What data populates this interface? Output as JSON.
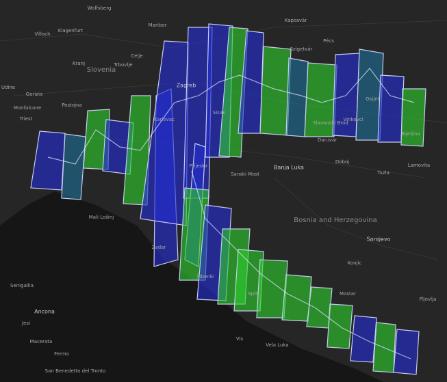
{
  "map": {
    "labels": [
      "Wolfsberg",
      "Villach",
      "Klagenfurt",
      "Maribor",
      "Celje",
      "Kranj",
      "Slovenia",
      "Trbovlje",
      "Udine",
      "Gorizia",
      "Monfalcone",
      "Postojna",
      "Triest",
      "Zagreb",
      "Karlovac",
      "Sisak",
      "Kaposvár",
      "Pécs",
      "Szigetvár",
      "Osijek",
      "Vinkovci",
      "Slavonski Brod",
      "Prijedor",
      "Banja Luka",
      "Doboj",
      "Tuzla",
      "Bijeljina",
      "Bosnia and Herzegovina",
      "Sarajevo",
      "Mostar",
      "Split",
      "Šibenik",
      "Zadar",
      "Mali Lošinj",
      "Ancona",
      "Senigallia",
      "Jesi",
      "Macerata",
      "Fermo",
      "San Benedetto del Tronto",
      "Vis",
      "Vela Luka",
      "Konjic",
      "Pljevlja",
      "Sanski Most",
      "Daruvar",
      "Lamovita"
    ]
  }
}
